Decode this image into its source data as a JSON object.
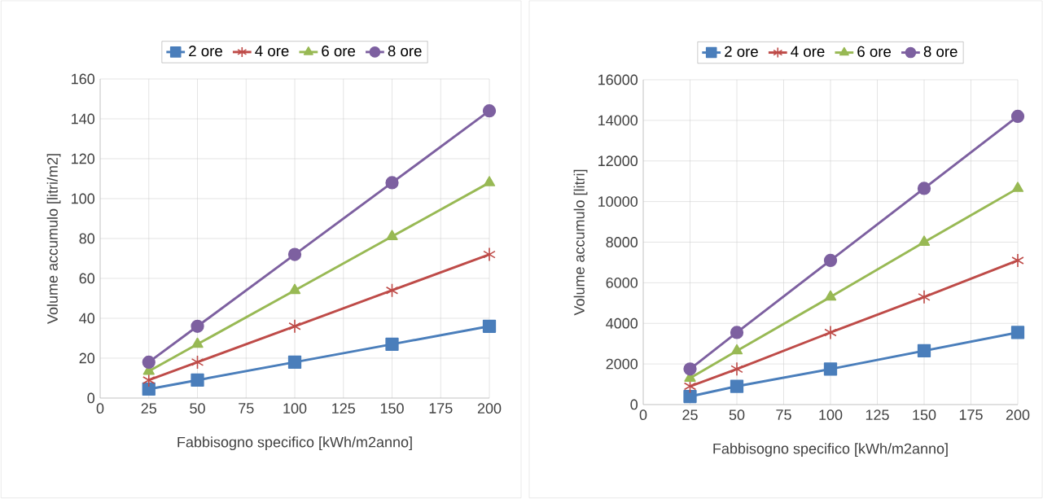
{
  "chart_data": [
    {
      "type": "line",
      "xlabel": "Fabbisogno specifico [kWh/m2anno]",
      "ylabel": "Volume accumulo [litri/m2]",
      "x": [
        25,
        50,
        100,
        150,
        200
      ],
      "xlim": [
        0,
        200
      ],
      "xticks": [
        0,
        25,
        50,
        75,
        100,
        125,
        150,
        175,
        200
      ],
      "ylim": [
        0,
        160
      ],
      "yticks": [
        0,
        20,
        40,
        60,
        80,
        100,
        120,
        140,
        160
      ],
      "grid": true,
      "legend": "top",
      "series": [
        {
          "name": "2 ore",
          "color": "#4a7ebb",
          "marker": "square",
          "values": [
            4.5,
            9,
            18,
            27,
            36
          ]
        },
        {
          "name": "4 ore",
          "color": "#be4b48",
          "marker": "cross",
          "values": [
            9,
            18,
            36,
            54,
            72
          ]
        },
        {
          "name": "6 ore",
          "color": "#98b954",
          "marker": "triangle",
          "values": [
            13.5,
            27,
            54,
            81,
            108
          ]
        },
        {
          "name": "8 ore",
          "color": "#7d60a0",
          "marker": "circle",
          "values": [
            18,
            36,
            72,
            108,
            144
          ]
        }
      ]
    },
    {
      "type": "line",
      "xlabel": "Fabbisogno specifico [kWh/m2anno]",
      "ylabel": "Volume accumulo [litri]",
      "x": [
        25,
        50,
        100,
        150,
        200
      ],
      "xlim": [
        0,
        200
      ],
      "xticks": [
        0,
        25,
        50,
        75,
        100,
        125,
        150,
        175,
        200
      ],
      "ylim": [
        0,
        16000
      ],
      "yticks": [
        0,
        2000,
        4000,
        6000,
        8000,
        10000,
        12000,
        14000,
        16000
      ],
      "grid": true,
      "legend": "top",
      "series": [
        {
          "name": "2 ore",
          "color": "#4a7ebb",
          "marker": "square",
          "values": [
            400,
            900,
            1750,
            2650,
            3550
          ]
        },
        {
          "name": "4 ore",
          "color": "#be4b48",
          "marker": "cross",
          "values": [
            900,
            1750,
            3550,
            5300,
            7100
          ]
        },
        {
          "name": "6 ore",
          "color": "#98b954",
          "marker": "triangle",
          "values": [
            1300,
            2650,
            5300,
            8000,
            10650
          ]
        },
        {
          "name": "8 ore",
          "color": "#7d60a0",
          "marker": "circle",
          "values": [
            1750,
            3550,
            7100,
            10650,
            14200
          ]
        }
      ]
    }
  ]
}
